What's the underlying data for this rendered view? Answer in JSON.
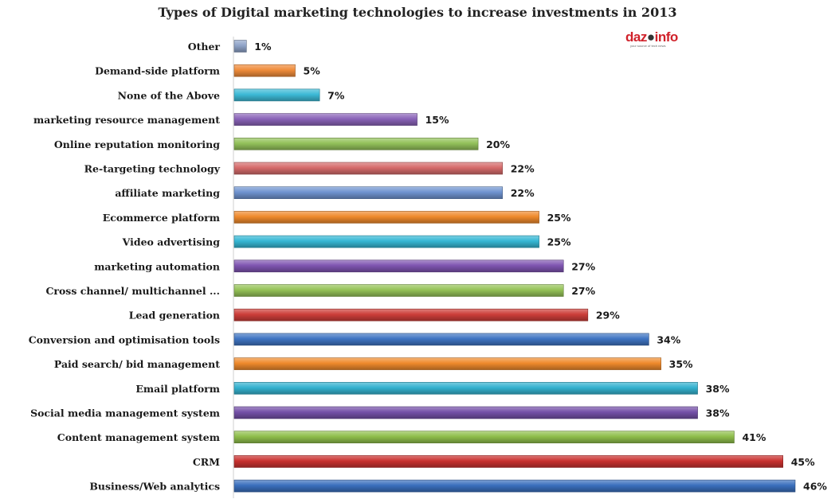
{
  "chart_data": {
    "type": "bar",
    "orientation": "horizontal",
    "title": "Types of Digital marketing technologies to increase investments in 2013",
    "categories": [
      "Other",
      "Demand-side platform",
      "None of the Above",
      "marketing resource management",
      "Online reputation monitoring",
      "Re-targeting technology",
      "affiliate marketing",
      "Ecommerce platform",
      "Video advertising",
      "marketing automation",
      "Cross channel/ multichannel ...",
      "Lead generation",
      "Conversion and optimisation tools",
      "Paid search/ bid management",
      "Email platform",
      "Social media management system",
      "Content management system",
      "CRM",
      "Business/Web analytics"
    ],
    "values": [
      1,
      5,
      7,
      15,
      20,
      22,
      22,
      25,
      25,
      27,
      27,
      29,
      34,
      35,
      38,
      38,
      41,
      45,
      46
    ],
    "value_labels": [
      "1%",
      "5%",
      "7%",
      "15%",
      "20%",
      "22%",
      "22%",
      "25%",
      "25%",
      "27%",
      "27%",
      "29%",
      "34%",
      "35%",
      "38%",
      "38%",
      "41%",
      "45%",
      "46%"
    ],
    "xlim": [
      0,
      46
    ],
    "grid": false,
    "legend": "none",
    "bar_colors": [
      "#8fa3c8",
      "#f08c3a",
      "#3cb9d6",
      "#8a63b8",
      "#93c15a",
      "#d56b6b",
      "#6f93cf",
      "#ef8a2c",
      "#35b7d4",
      "#7f55b1",
      "#95c257",
      "#cc3d39",
      "#3f74c2",
      "#ef8a2c",
      "#34b2cf",
      "#7450a8",
      "#8fbe4b",
      "#c9312f",
      "#3a6fbd"
    ]
  },
  "logo": {
    "text": "dazeinfo",
    "tagline": "your source of tech news"
  }
}
